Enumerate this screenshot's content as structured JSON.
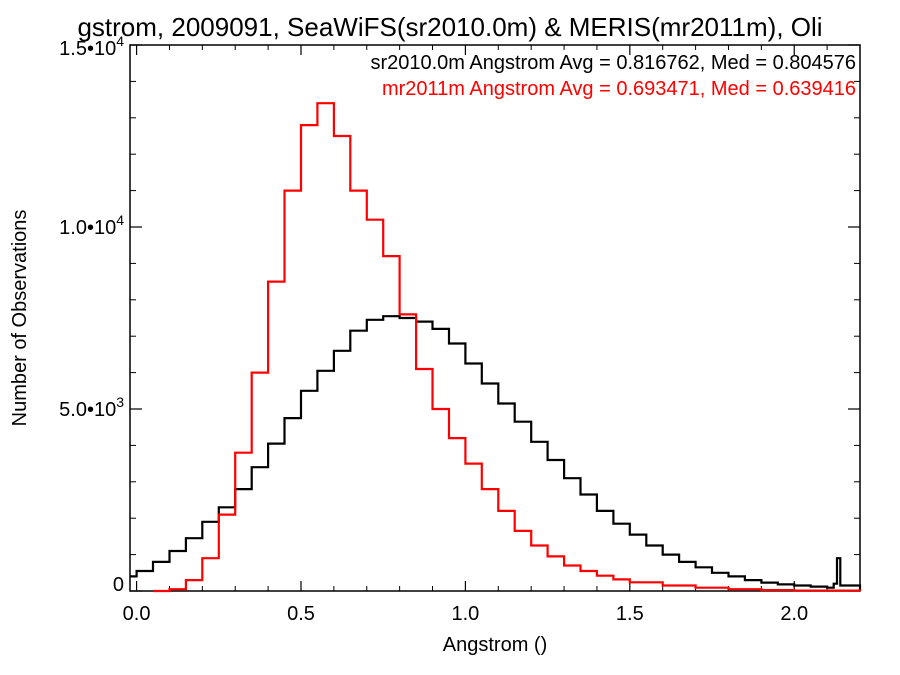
{
  "chart_data": {
    "type": "line",
    "title": "gstrom, 2009091, SeaWiFS(sr2010.0m) & MERIS(mr2011m), Oli",
    "xlabel": "Angstrom ()",
    "ylabel": "Number of Observations",
    "xlim": [
      -0.02,
      2.2
    ],
    "ylim": [
      0,
      15000
    ],
    "x_ticks": [
      {
        "value": 0.0,
        "label": "0.0"
      },
      {
        "value": 0.5,
        "label": "0.5"
      },
      {
        "value": 1.0,
        "label": "1.0"
      },
      {
        "value": 1.5,
        "label": "1.5"
      },
      {
        "value": 2.0,
        "label": "2.0"
      }
    ],
    "y_ticks": [
      {
        "value": 0,
        "mantissa": "0",
        "exponent": ""
      },
      {
        "value": 5000,
        "mantissa": "5.0•10",
        "exponent": "3"
      },
      {
        "value": 10000,
        "mantissa": "1.0•10",
        "exponent": "4"
      },
      {
        "value": 15000,
        "mantissa": "1.5•10",
        "exponent": "4"
      }
    ],
    "annotations": [
      {
        "text": "sr2010.0m Angstrom Avg = 0.816762, Med = 0.804576",
        "color": "#000000"
      },
      {
        "text": "mr2011m Angstrom Avg = 0.693471, Med = 0.639416",
        "color": "#ff0000"
      }
    ],
    "series": [
      {
        "color": "#000000",
        "x": [
          -0.02,
          0.0,
          0.05,
          0.1,
          0.15,
          0.2,
          0.25,
          0.3,
          0.35,
          0.4,
          0.45,
          0.5,
          0.55,
          0.6,
          0.65,
          0.7,
          0.75,
          0.8,
          0.85,
          0.9,
          0.95,
          1.0,
          1.05,
          1.1,
          1.15,
          1.2,
          1.25,
          1.3,
          1.35,
          1.4,
          1.45,
          1.5,
          1.55,
          1.6,
          1.65,
          1.7,
          1.75,
          1.8,
          1.85,
          1.9,
          1.95,
          2.0,
          2.05,
          2.1,
          2.12,
          2.13,
          2.14,
          2.2
        ],
        "values": [
          400,
          550,
          800,
          1100,
          1450,
          1900,
          2300,
          2800,
          3400,
          4050,
          4750,
          5500,
          6050,
          6600,
          7150,
          7450,
          7550,
          7500,
          7400,
          7200,
          6800,
          6250,
          5700,
          5150,
          4650,
          4100,
          3600,
          3100,
          2650,
          2200,
          1850,
          1550,
          1250,
          1000,
          800,
          650,
          500,
          400,
          300,
          230,
          180,
          150,
          120,
          90,
          200,
          900,
          150,
          0
        ]
      },
      {
        "color": "#ff0000",
        "x": [
          0.05,
          0.1,
          0.15,
          0.2,
          0.25,
          0.3,
          0.35,
          0.4,
          0.45,
          0.5,
          0.55,
          0.6,
          0.65,
          0.7,
          0.75,
          0.8,
          0.85,
          0.9,
          0.95,
          1.0,
          1.05,
          1.1,
          1.15,
          1.2,
          1.25,
          1.3,
          1.35,
          1.4,
          1.45,
          1.5,
          1.6,
          1.7,
          1.8,
          1.9,
          2.0,
          2.2
        ],
        "values": [
          0,
          50,
          300,
          900,
          2100,
          3800,
          6000,
          8500,
          11000,
          12800,
          13400,
          12500,
          11000,
          10200,
          9200,
          7600,
          6100,
          5000,
          4200,
          3500,
          2800,
          2200,
          1650,
          1250,
          950,
          700,
          550,
          420,
          320,
          240,
          150,
          90,
          50,
          25,
          10,
          0
        ]
      }
    ]
  }
}
